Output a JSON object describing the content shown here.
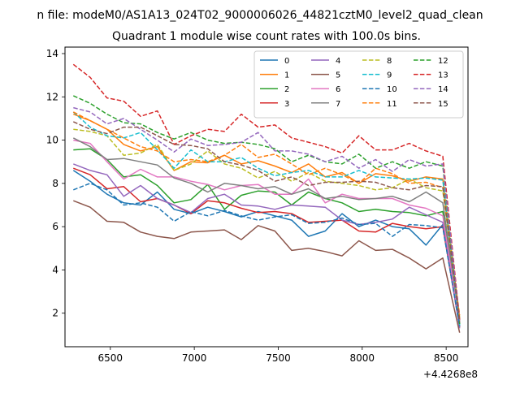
{
  "chart_data": {
    "type": "line",
    "title": "Quadrant 1 module wise count rates with 100.0s bins.",
    "suptitle": "n file: modeM0/AS1A13_024T02_9000006026_44821cztM0_level2_quad_clean",
    "xlabel": "",
    "ylabel": "",
    "x_offset_label": "+4.4268e8",
    "xlim": [
      6230,
      8630
    ],
    "ylim": [
      0.45,
      14.3
    ],
    "xticks": [
      6500,
      7000,
      7500,
      8000,
      8500
    ],
    "xtick_labels": [
      "6500",
      "7000",
      "7500",
      "8000",
      "8500"
    ],
    "yticks": [
      2,
      4,
      6,
      8,
      10,
      12,
      14
    ],
    "ytick_labels": [
      "2",
      "4",
      "6",
      "8",
      "10",
      "12",
      "14"
    ],
    "grid": false,
    "legend": {
      "placement": "top-right",
      "ncol": 4
    },
    "x": [
      6280,
      6380,
      6480,
      6580,
      6680,
      6780,
      6880,
      6980,
      7080,
      7180,
      7280,
      7380,
      7480,
      7580,
      7680,
      7780,
      7880,
      7980,
      8080,
      8180,
      8280,
      8380,
      8480,
      8580
    ],
    "series": [
      {
        "name": "0",
        "color": "#1f77b4",
        "dash": "solid",
        "values": [
          8.6,
          8.1,
          7.5,
          7.1,
          7.0,
          7.6,
          6.8,
          6.6,
          6.9,
          6.7,
          6.45,
          6.7,
          6.5,
          6.3,
          5.55,
          5.8,
          6.6,
          6.0,
          6.3,
          6.0,
          5.9,
          5.15,
          6.1,
          1.4
        ]
      },
      {
        "name": "1",
        "color": "#ff7f0e",
        "dash": "solid",
        "values": [
          11.2,
          10.9,
          10.5,
          9.8,
          9.5,
          9.7,
          8.6,
          9.0,
          8.95,
          9.3,
          8.9,
          9.05,
          8.8,
          8.5,
          8.9,
          8.3,
          8.5,
          8.0,
          8.45,
          8.35,
          8.1,
          8.3,
          8.2,
          1.7
        ]
      },
      {
        "name": "2",
        "color": "#2ca02c",
        "dash": "solid",
        "values": [
          9.55,
          9.6,
          9.1,
          8.3,
          8.4,
          7.9,
          7.1,
          7.25,
          7.95,
          6.8,
          7.45,
          7.65,
          7.6,
          7.0,
          7.6,
          7.3,
          7.1,
          6.7,
          6.8,
          6.7,
          6.65,
          6.5,
          6.7,
          1.5
        ]
      },
      {
        "name": "3",
        "color": "#d62728",
        "dash": "solid",
        "values": [
          8.7,
          8.4,
          7.75,
          7.85,
          7.15,
          7.3,
          7.0,
          6.6,
          7.2,
          7.1,
          6.85,
          6.65,
          6.7,
          6.6,
          6.2,
          6.25,
          6.3,
          5.8,
          5.75,
          6.15,
          6.0,
          5.9,
          6.0,
          1.35
        ]
      },
      {
        "name": "4",
        "color": "#9467bd",
        "dash": "solid",
        "values": [
          8.9,
          8.6,
          8.4,
          7.4,
          7.9,
          7.3,
          7.0,
          6.65,
          7.3,
          7.5,
          7.0,
          6.95,
          6.8,
          7.0,
          6.95,
          6.9,
          6.3,
          6.1,
          6.2,
          6.35,
          6.9,
          6.55,
          6.2,
          1.3
        ]
      },
      {
        "name": "5",
        "color": "#8c564b",
        "dash": "solid",
        "values": [
          7.2,
          6.9,
          6.25,
          6.2,
          5.75,
          5.55,
          5.45,
          5.75,
          5.8,
          5.85,
          5.4,
          6.05,
          5.8,
          4.9,
          5.0,
          4.85,
          4.65,
          5.35,
          4.9,
          4.95,
          4.55,
          4.05,
          4.55,
          1.1
        ]
      },
      {
        "name": "6",
        "color": "#e377c2",
        "dash": "solid",
        "values": [
          10.0,
          9.85,
          9.0,
          8.2,
          8.65,
          8.3,
          8.3,
          8.1,
          7.95,
          7.7,
          7.9,
          7.95,
          7.5,
          7.5,
          8.2,
          7.1,
          7.5,
          7.3,
          7.3,
          7.3,
          7.0,
          6.85,
          6.5,
          1.55
        ]
      },
      {
        "name": "7",
        "color": "#7f7f7f",
        "dash": "solid",
        "values": [
          10.1,
          9.7,
          9.1,
          9.15,
          9.0,
          8.85,
          8.25,
          8.0,
          7.6,
          8.0,
          7.9,
          7.75,
          7.85,
          7.5,
          7.75,
          7.3,
          7.4,
          7.25,
          7.3,
          7.4,
          7.15,
          7.6,
          7.1,
          1.65
        ]
      },
      {
        "name": "8",
        "color": "#bcbd22",
        "dash": "dashed",
        "values": [
          10.5,
          10.4,
          10.2,
          9.3,
          9.4,
          9.8,
          8.6,
          8.9,
          9.5,
          8.9,
          8.7,
          8.25,
          8.55,
          8.1,
          8.5,
          8.1,
          8.0,
          7.9,
          7.7,
          7.8,
          8.2,
          7.8,
          7.65,
          1.8
        ]
      },
      {
        "name": "9",
        "color": "#17becf",
        "dash": "dashed",
        "values": [
          11.3,
          10.6,
          10.2,
          10.1,
          10.35,
          9.55,
          8.7,
          9.55,
          9.0,
          9.0,
          9.2,
          8.7,
          8.35,
          8.5,
          8.6,
          8.3,
          8.3,
          8.6,
          8.3,
          8.25,
          8.2,
          8.25,
          8.15,
          1.45
        ]
      },
      {
        "name": "10",
        "color": "#1f77b4",
        "dash": "dashed",
        "values": [
          7.7,
          8.0,
          7.7,
          7.0,
          7.1,
          6.9,
          6.25,
          6.7,
          6.5,
          6.75,
          6.5,
          6.3,
          6.45,
          6.55,
          6.15,
          6.2,
          6.4,
          6.1,
          6.15,
          5.55,
          6.1,
          6.05,
          5.95,
          1.4
        ]
      },
      {
        "name": "11",
        "color": "#ff7f0e",
        "dash": "dashed",
        "values": [
          11.3,
          10.9,
          10.5,
          10.1,
          9.7,
          9.5,
          9.0,
          9.1,
          9.0,
          9.3,
          9.8,
          9.2,
          9.35,
          8.9,
          8.4,
          8.7,
          8.4,
          8.0,
          8.7,
          8.45,
          8.0,
          8.05,
          7.8,
          1.9
        ]
      },
      {
        "name": "12",
        "color": "#2ca02c",
        "dash": "dashed",
        "values": [
          12.05,
          11.7,
          11.2,
          10.8,
          10.75,
          10.35,
          10.05,
          10.35,
          10.0,
          9.85,
          9.9,
          9.8,
          9.6,
          9.0,
          9.3,
          9.0,
          8.9,
          9.35,
          8.7,
          9.0,
          8.7,
          9.0,
          8.8,
          1.5
        ]
      },
      {
        "name": "13",
        "color": "#d62728",
        "dash": "dashed",
        "values": [
          13.5,
          12.9,
          11.95,
          11.8,
          11.1,
          11.35,
          9.8,
          10.2,
          10.5,
          10.4,
          11.2,
          10.6,
          10.7,
          10.1,
          9.9,
          9.7,
          9.4,
          10.2,
          9.55,
          9.55,
          9.85,
          9.5,
          9.25,
          1.7
        ]
      },
      {
        "name": "14",
        "color": "#9467bd",
        "dash": "dashed",
        "values": [
          11.5,
          11.3,
          10.75,
          11.0,
          10.5,
          10.0,
          9.45,
          10.05,
          9.75,
          9.8,
          9.9,
          10.35,
          9.5,
          9.5,
          9.35,
          9.0,
          9.25,
          8.7,
          9.1,
          8.55,
          9.1,
          8.8,
          8.9,
          1.6
        ]
      },
      {
        "name": "15",
        "color": "#8c564b",
        "dash": "dashed",
        "values": [
          10.85,
          10.5,
          10.3,
          10.6,
          10.6,
          10.2,
          9.8,
          9.75,
          9.6,
          9.0,
          8.85,
          8.6,
          8.1,
          8.3,
          7.9,
          8.05,
          8.05,
          8.1,
          8.05,
          7.8,
          7.7,
          7.9,
          7.85,
          1.6
        ]
      }
    ]
  }
}
